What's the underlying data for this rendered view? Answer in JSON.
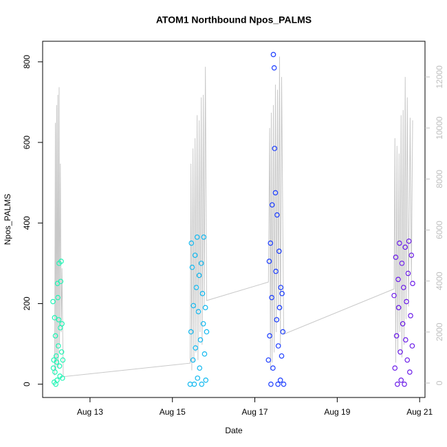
{
  "chart_data": {
    "type": "scatter",
    "title": "ATOM1 Northbound Npos_PALMS",
    "x_label": "Date",
    "y_label": "Npos_PALMS",
    "xlim": [
      11.85,
      21.13
    ],
    "xticks": [
      {
        "value": 13,
        "label": "Aug 13"
      },
      {
        "value": 15,
        "label": "Aug 15"
      },
      {
        "value": 17,
        "label": "Aug 17"
      },
      {
        "value": 19,
        "label": "Aug 19"
      },
      {
        "value": 21,
        "label": "Aug 21"
      }
    ],
    "ylim": [
      -33,
      851
    ],
    "yticks": [
      0,
      200,
      400,
      600,
      800
    ],
    "y2lim": [
      -566,
      13400
    ],
    "y2ticks": [
      0,
      2000,
      4000,
      6000,
      8000,
      10000,
      12000
    ],
    "y2_color": "#bebebe",
    "series": [
      {
        "color": "#20f5b5",
        "x": [
          12.1,
          12.11,
          12.12,
          12.13,
          12.14,
          12.15,
          12.16,
          12.17,
          12.18,
          12.19,
          12.2,
          12.21,
          12.22,
          12.23,
          12.24,
          12.25,
          12.26,
          12.27,
          12.28,
          12.29,
          12.3,
          12.31,
          12.32,
          12.33,
          12.34
        ],
        "values": [
          205,
          40,
          60,
          5,
          165,
          30,
          120,
          0,
          70,
          55,
          10,
          250,
          215,
          95,
          160,
          300,
          45,
          20,
          140,
          255,
          305,
          80,
          150,
          15,
          60
        ]
      },
      {
        "color": "#10b8f0",
        "x": [
          15.43,
          15.45,
          15.46,
          15.48,
          15.5,
          15.51,
          15.53,
          15.55,
          15.56,
          15.58,
          15.6,
          15.61,
          15.63,
          15.65,
          15.66,
          15.68,
          15.7,
          15.71,
          15.73,
          15.75,
          15.76,
          15.78,
          15.8,
          15.81,
          15.83
        ],
        "values": [
          0,
          130,
          350,
          290,
          60,
          195,
          0,
          320,
          90,
          240,
          365,
          15,
          180,
          270,
          40,
          110,
          300,
          0,
          225,
          150,
          365,
          75,
          190,
          10,
          130
        ]
      },
      {
        "color": "#1a3cff",
        "x": [
          17.33,
          17.35,
          17.36,
          17.38,
          17.39,
          17.41,
          17.42,
          17.44,
          17.45,
          17.47,
          17.48,
          17.5,
          17.51,
          17.53,
          17.54,
          17.56,
          17.57,
          17.59,
          17.6,
          17.62,
          17.63,
          17.65,
          17.66,
          17.68,
          17.7
        ],
        "values": [
          60,
          305,
          120,
          350,
          0,
          215,
          445,
          40,
          818,
          785,
          585,
          475,
          280,
          160,
          420,
          0,
          95,
          330,
          190,
          10,
          240,
          70,
          225,
          130,
          0
        ]
      },
      {
        "color": "#6a1ae8",
        "x": [
          20.38,
          20.4,
          20.42,
          20.44,
          20.46,
          20.48,
          20.49,
          20.51,
          20.53,
          20.55,
          20.57,
          20.59,
          20.61,
          20.63,
          20.65,
          20.66,
          20.68,
          20.7,
          20.72,
          20.74,
          20.76,
          20.78,
          20.8,
          20.82,
          20.83
        ],
        "values": [
          220,
          40,
          315,
          120,
          0,
          260,
          190,
          350,
          80,
          10,
          300,
          150,
          240,
          0,
          340,
          110,
          205,
          60,
          275,
          355,
          30,
          170,
          320,
          95,
          250
        ]
      },
      {
        "color": "#c8c8c8",
        "axis": "y2",
        "x": [
          12.14,
          12.16,
          12.17,
          12.19,
          12.2,
          12.22,
          12.23,
          12.25,
          12.26,
          12.28,
          12.3,
          12.32,
          12.35,
          15.43,
          15.45,
          15.47,
          15.5,
          15.52,
          15.55,
          15.57,
          15.6,
          15.62,
          15.65,
          15.67,
          15.7,
          15.72,
          15.75,
          15.77,
          15.8,
          15.83,
          17.33,
          17.36,
          17.38,
          17.4,
          17.42,
          17.45,
          17.47,
          17.5,
          17.52,
          17.55,
          17.57,
          17.6,
          17.62,
          17.65,
          17.7,
          20.38,
          20.4,
          20.42,
          20.45,
          20.47,
          20.5,
          20.52,
          20.55,
          20.57,
          20.6,
          20.62,
          20.65,
          20.67,
          20.7,
          20.73,
          20.77,
          20.8,
          20.83
        ],
        "values": [
          300,
          10200,
          500,
          10900,
          800,
          11300,
          600,
          11600,
          1500,
          8600,
          2000,
          4500,
          250,
          780,
          8600,
          500,
          9200,
          800,
          9600,
          1200,
          10500,
          900,
          10300,
          2000,
          11200,
          1500,
          11300,
          3000,
          12400,
          3235,
          3960,
          10000,
          500,
          10600,
          800,
          10900,
          1200,
          11700,
          2000,
          11500,
          3000,
          12800,
          1500,
          12000,
          1914,
          3690,
          9600,
          800,
          9300,
          1200,
          9000,
          2000,
          10500,
          1000,
          10700,
          1500,
          12000,
          2500,
          11200,
          3000,
          10400,
          4000,
          10300
        ]
      }
    ]
  }
}
